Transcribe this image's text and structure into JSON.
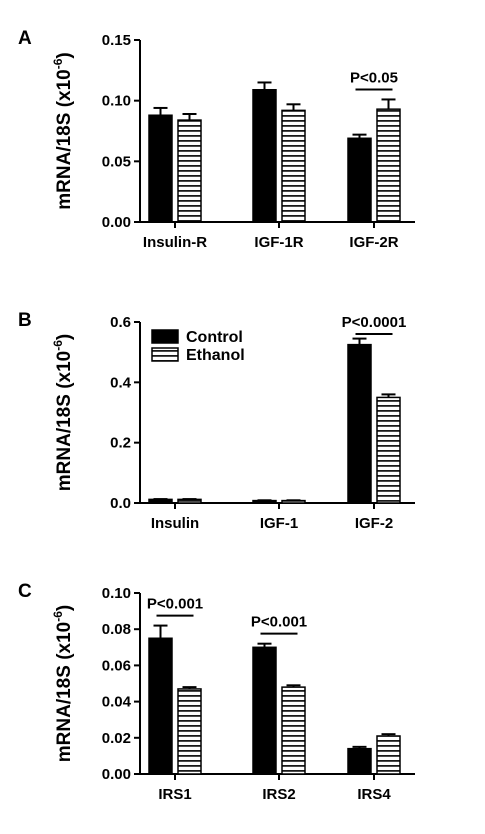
{
  "chart_data": [
    {
      "type": "bar",
      "panel": "A",
      "ylabel": "mRNA/18S (x10",
      "ylabel_sup": "-6",
      "ylabel_close": ")",
      "ylim": [
        0,
        0.15
      ],
      "yticks": [
        "0.00",
        "0.05",
        "0.10",
        "0.15"
      ],
      "ytick_values": [
        0,
        0.05,
        0.1,
        0.15
      ],
      "categories": [
        "Insulin-R",
        "IGF-1R",
        "IGF-2R"
      ],
      "series": [
        {
          "name": "Control",
          "values": [
            0.088,
            0.109,
            0.069
          ],
          "errors": [
            0.006,
            0.006,
            0.003
          ]
        },
        {
          "name": "Ethanol",
          "values": [
            0.084,
            0.092,
            0.093
          ],
          "errors": [
            0.005,
            0.005,
            0.008
          ]
        }
      ],
      "annotations": [
        {
          "text": "P<0.05",
          "category_index": 2
        }
      ]
    },
    {
      "type": "bar",
      "panel": "B",
      "ylabel": "mRNA/18S (x10",
      "ylabel_sup": "-6",
      "ylabel_close": ")",
      "ylim": [
        0,
        0.6
      ],
      "yticks": [
        "0.0",
        "0.2",
        "0.4",
        "0.6"
      ],
      "ytick_values": [
        0,
        0.2,
        0.4,
        0.6
      ],
      "categories": [
        "Insulin",
        "IGF-1",
        "IGF-2"
      ],
      "series": [
        {
          "name": "Control",
          "values": [
            0.012,
            0.008,
            0.525
          ],
          "errors": [
            0.001,
            0.001,
            0.02
          ]
        },
        {
          "name": "Ethanol",
          "values": [
            0.012,
            0.008,
            0.35
          ],
          "errors": [
            0.001,
            0.001,
            0.01
          ]
        }
      ],
      "legend": {
        "position": "top-left",
        "entries": [
          "Control",
          "Ethanol"
        ]
      },
      "annotations": [
        {
          "text": "P<0.0001",
          "category_index": 2
        }
      ]
    },
    {
      "type": "bar",
      "panel": "C",
      "ylabel": "mRNA/18S (x10",
      "ylabel_sup": "-6",
      "ylabel_close": ")",
      "ylim": [
        0,
        0.1
      ],
      "yticks": [
        "0.00",
        "0.02",
        "0.04",
        "0.06",
        "0.08",
        "0.10"
      ],
      "ytick_values": [
        0,
        0.02,
        0.04,
        0.06,
        0.08,
        0.1
      ],
      "categories": [
        "IRS1",
        "IRS2",
        "IRS4"
      ],
      "series": [
        {
          "name": "Control",
          "values": [
            0.075,
            0.07,
            0.014
          ],
          "errors": [
            0.007,
            0.002,
            0.001
          ]
        },
        {
          "name": "Ethanol",
          "values": [
            0.047,
            0.048,
            0.021
          ],
          "errors": [
            0.001,
            0.001,
            0.001
          ]
        }
      ],
      "annotations": [
        {
          "text": "P<0.001",
          "category_index": 0
        },
        {
          "text": "P<0.001",
          "category_index": 1
        }
      ]
    }
  ]
}
